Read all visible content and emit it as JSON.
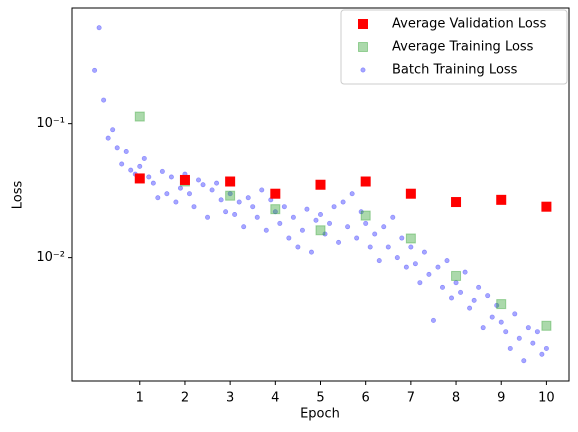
{
  "chart_data": {
    "type": "scatter",
    "xlabel": "Epoch",
    "ylabel": "Loss",
    "xlim": [
      -0.5,
      10.5
    ],
    "xticks": [
      1,
      2,
      3,
      4,
      5,
      6,
      7,
      8,
      9,
      10
    ],
    "ylim": [
      0.0012,
      0.73
    ],
    "yticks": [
      {
        "value": 0.01,
        "label": "10⁻²"
      },
      {
        "value": 0.1,
        "label": "10⁻¹"
      }
    ],
    "yscale": "log",
    "grid": false,
    "legend": "upper right",
    "series": [
      {
        "name": "Average Validation Loss",
        "color": "#ff0000",
        "marker": "square",
        "x": [
          1,
          2,
          3,
          4,
          5,
          6,
          7,
          8,
          9,
          10
        ],
        "values": [
          0.039,
          0.038,
          0.037,
          0.03,
          0.035,
          0.037,
          0.03,
          0.026,
          0.027,
          0.024
        ]
      },
      {
        "name": "Average Training Loss",
        "color": "#2ca02c",
        "marker": "square",
        "x": [
          1,
          2,
          3,
          4,
          5,
          6,
          7,
          8,
          9,
          10
        ],
        "values": [
          0.113,
          0.037,
          0.029,
          0.023,
          0.016,
          0.0206,
          0.0139,
          0.0073,
          0.0045,
          0.0031
        ]
      },
      {
        "name": "Batch Training Loss",
        "color": "#0000ff",
        "marker": "circle",
        "x": [
          0.0,
          0.1,
          0.2,
          0.3,
          0.4,
          0.5,
          0.6,
          0.7,
          0.8,
          0.9,
          1.0,
          1.1,
          1.2,
          1.3,
          1.4,
          1.5,
          1.6,
          1.7,
          1.8,
          1.9,
          2.0,
          2.1,
          2.2,
          2.3,
          2.4,
          2.5,
          2.6,
          2.7,
          2.8,
          2.9,
          3.0,
          3.1,
          3.2,
          3.3,
          3.4,
          3.5,
          3.6,
          3.7,
          3.8,
          3.9,
          4.0,
          4.1,
          4.2,
          4.3,
          4.4,
          4.5,
          4.6,
          4.7,
          4.8,
          4.9,
          5.0,
          5.1,
          5.2,
          5.3,
          5.4,
          5.5,
          5.6,
          5.7,
          5.8,
          5.9,
          6.0,
          6.1,
          6.2,
          6.3,
          6.4,
          6.5,
          6.6,
          6.7,
          6.8,
          6.9,
          7.0,
          7.1,
          7.2,
          7.3,
          7.4,
          7.5,
          7.6,
          7.7,
          7.8,
          7.9,
          8.0,
          8.1,
          8.2,
          8.3,
          8.4,
          8.5,
          8.6,
          8.7,
          8.8,
          8.9,
          9.0,
          9.1,
          9.2,
          9.3,
          9.4,
          9.5,
          9.6,
          9.7,
          9.8,
          9.9,
          10.0
        ],
        "values": [
          0.25,
          0.52,
          0.15,
          0.078,
          0.09,
          0.066,
          0.05,
          0.062,
          0.045,
          0.042,
          0.048,
          0.055,
          0.04,
          0.036,
          0.028,
          0.044,
          0.03,
          0.04,
          0.026,
          0.033,
          0.042,
          0.03,
          0.024,
          0.038,
          0.035,
          0.02,
          0.032,
          0.036,
          0.027,
          0.022,
          0.03,
          0.021,
          0.026,
          0.017,
          0.028,
          0.024,
          0.02,
          0.032,
          0.016,
          0.027,
          0.022,
          0.018,
          0.024,
          0.014,
          0.02,
          0.012,
          0.016,
          0.023,
          0.011,
          0.019,
          0.021,
          0.015,
          0.018,
          0.024,
          0.013,
          0.026,
          0.017,
          0.03,
          0.014,
          0.022,
          0.018,
          0.012,
          0.015,
          0.0095,
          0.017,
          0.012,
          0.02,
          0.01,
          0.014,
          0.0085,
          0.012,
          0.009,
          0.0065,
          0.011,
          0.0075,
          0.0034,
          0.0085,
          0.006,
          0.0095,
          0.005,
          0.0065,
          0.0055,
          0.0078,
          0.0042,
          0.0048,
          0.006,
          0.003,
          0.0052,
          0.0036,
          0.0044,
          0.0033,
          0.0028,
          0.0021,
          0.0038,
          0.0025,
          0.0017,
          0.003,
          0.0023,
          0.0028,
          0.0019,
          0.0021
        ]
      }
    ]
  }
}
